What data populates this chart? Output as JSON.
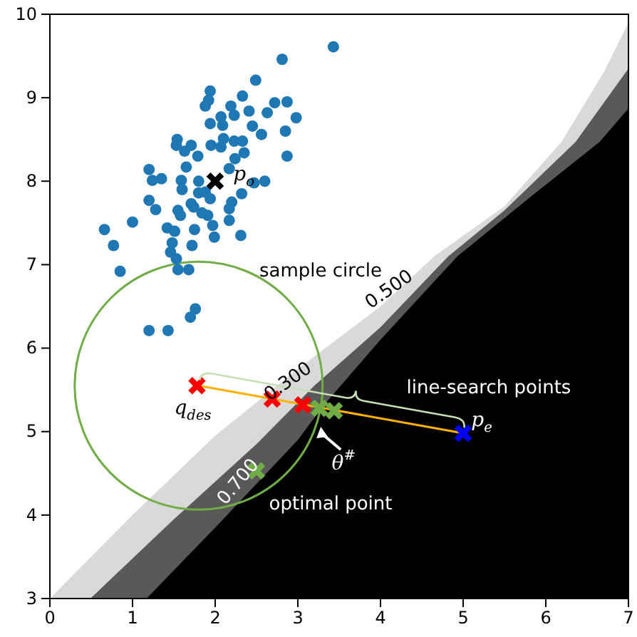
{
  "chart_data": {
    "type": "scatter",
    "xlim": [
      0,
      7
    ],
    "ylim": [
      3,
      10
    ],
    "xticks": [
      0,
      1,
      2,
      3,
      4,
      5,
      6,
      7
    ],
    "yticks": [
      3,
      4,
      5,
      6,
      7,
      8,
      9,
      10
    ],
    "grid": false,
    "series": [
      {
        "type": "area",
        "color": "#d9d9d9",
        "x": [
          0,
          1,
          2,
          3,
          3.28,
          4,
          4.65,
          5.5,
          6.19,
          6.71,
          7
        ],
        "values": [
          3.0,
          4.0,
          4.95,
          5.75,
          5.96,
          6.5,
          7.1,
          7.7,
          8.47,
          9.32,
          9.9
        ]
      },
      {
        "type": "area",
        "color": "#595959",
        "x": [
          0.49,
          1.5,
          2.5,
          3.2,
          4,
          4.82,
          5.5,
          6.36,
          7
        ],
        "values": [
          3.0,
          3.95,
          4.85,
          5.55,
          6.25,
          7.1,
          7.65,
          8.47,
          9.35
        ]
      },
      {
        "type": "area",
        "color": "#000000",
        "x": [
          1.17,
          2,
          3,
          3.3,
          4,
          4.93,
          5.8,
          6.65,
          7
        ],
        "values": [
          3.0,
          3.85,
          4.9,
          5.3,
          6.1,
          7.1,
          7.8,
          8.47,
          8.87
        ]
      },
      {
        "type": "line",
        "color": "#ffb000",
        "x": [
          1.8,
          5.0
        ],
        "values": [
          5.55,
          4.98
        ]
      },
      {
        "marker": "circle",
        "color": "#1f77b4",
        "x": [
          3.43,
          2.81,
          2.49,
          1.94,
          1.92,
          1.88,
          2.33,
          2.19,
          2.72,
          2.87,
          2.63,
          2.98,
          2.41,
          2.23,
          2.07,
          1.94,
          2.09,
          2.45,
          2.56,
          2.85,
          1.54,
          1.53,
          1.71,
          1.63,
          1.79,
          1.95,
          2.07,
          2.1,
          2.23,
          2.33,
          2.35,
          2.24,
          2.87,
          1.65,
          1.2,
          1.24,
          1.35,
          2.17,
          1.59,
          1.6,
          1.8,
          2.47,
          2.6,
          2.32,
          2.2,
          2.17,
          1.2,
          1.28,
          1.71,
          1.8,
          1.88,
          1.94,
          1.55,
          1.58,
          1.74,
          1.84,
          1.91,
          1.0,
          0.66,
          0.77,
          0.85,
          1.42,
          1.51,
          1.75,
          1.97,
          1.99,
          2.17,
          2.31,
          1.48,
          1.72,
          1.46,
          1.53,
          1.55,
          1.68,
          1.76,
          1.7,
          1.2,
          1.43
        ],
        "values": [
          9.61,
          9.46,
          9.21,
          9.08,
          8.97,
          8.9,
          9.02,
          8.9,
          8.94,
          8.95,
          8.82,
          8.76,
          8.84,
          8.79,
          8.77,
          8.69,
          8.67,
          8.66,
          8.56,
          8.6,
          8.5,
          8.43,
          8.43,
          8.36,
          8.3,
          8.43,
          8.41,
          8.51,
          8.48,
          8.48,
          8.34,
          8.27,
          8.3,
          8.17,
          8.14,
          8.01,
          8.03,
          8.15,
          8.01,
          7.9,
          8.0,
          7.98,
          8.0,
          7.85,
          7.75,
          7.67,
          7.77,
          7.66,
          7.73,
          7.86,
          7.87,
          7.79,
          7.65,
          7.59,
          7.69,
          7.62,
          7.59,
          7.51,
          7.42,
          7.23,
          6.92,
          7.44,
          7.4,
          7.42,
          7.47,
          7.33,
          7.53,
          7.35,
          7.26,
          7.23,
          7.15,
          7.07,
          6.94,
          6.94,
          6.47,
          6.37,
          6.21,
          6.21
        ]
      },
      {
        "marker": "cross",
        "color": "#000000",
        "x": [
          2.0
        ],
        "values": [
          8.0
        ]
      },
      {
        "marker": "cross",
        "color": "#ff0000",
        "x": [
          1.78,
          2.69,
          3.06
        ],
        "values": [
          5.55,
          5.39,
          5.32
        ]
      },
      {
        "marker": "cross",
        "color": "#70ad47",
        "x": [
          3.26,
          3.44,
          2.5
        ],
        "values": [
          5.28,
          5.25,
          4.53
        ]
      },
      {
        "marker": "cross",
        "color": "#0000ff",
        "x": [
          5.0
        ],
        "values": [
          4.98
        ]
      }
    ],
    "annotations": [
      "sample circle",
      "0.500",
      {
        "text": "0.300",
        "x": 2.88,
        "y": 5.6
      },
      "0.700",
      {
        "text": "q$_{des}$",
        "x": 1.78,
        "y": 5.55
      },
      {
        "text": "p$_{e}$",
        "x": 5.0,
        "y": 4.98
      },
      {
        "text": "p$_{o}$",
        "x": 2.38,
        "y": 8.03
      },
      {
        "text": "θ$^{#}$",
        "x": 3.26,
        "y": 5.28
      },
      {
        "text": "optimal point",
        "x": 2.5,
        "y": 4.53
      },
      "line-search points"
    ]
  }
}
